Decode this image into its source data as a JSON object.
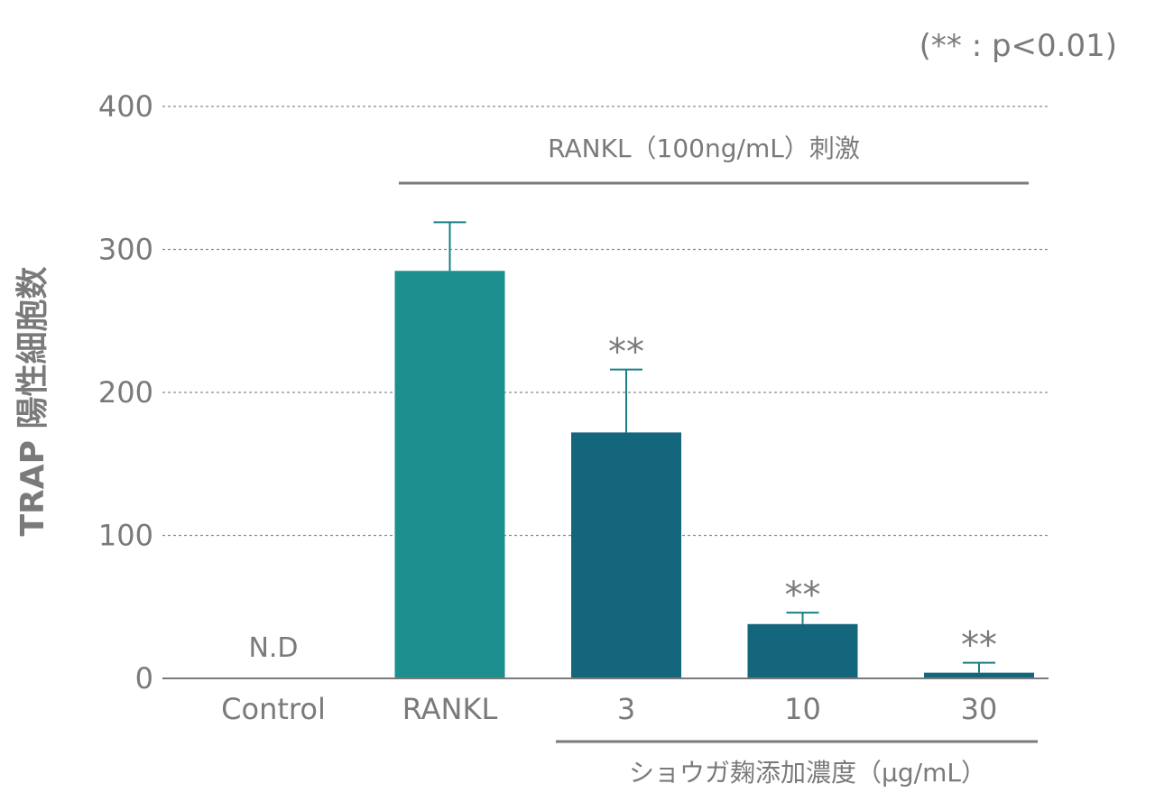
{
  "note": "(** : p<0.01)",
  "chart_data": {
    "type": "bar",
    "title": "",
    "ylabel": "TRAP 陽性細胞数",
    "xlabel": "ショウガ麹添加濃度（μg/mL）",
    "ylim": [
      0,
      400
    ],
    "yticks": [
      0,
      100,
      200,
      300,
      400
    ],
    "grid": true,
    "stimulation_label": "RANKL（100ng/mL）刺激",
    "categories": [
      "Control",
      "RANKL",
      "3",
      "10",
      "30"
    ],
    "values": [
      0,
      285,
      172,
      38,
      4
    ],
    "errors": [
      null,
      34,
      44,
      8,
      7
    ],
    "bar_labels": [
      "N.D",
      "",
      "**",
      "**",
      "**"
    ],
    "colors": [
      "#1c8f8f",
      "#1c8f8f",
      "#14667c",
      "#14667c",
      "#14667c"
    ],
    "error_color": "#1a7f86",
    "text_color": "#7a7a7a"
  }
}
